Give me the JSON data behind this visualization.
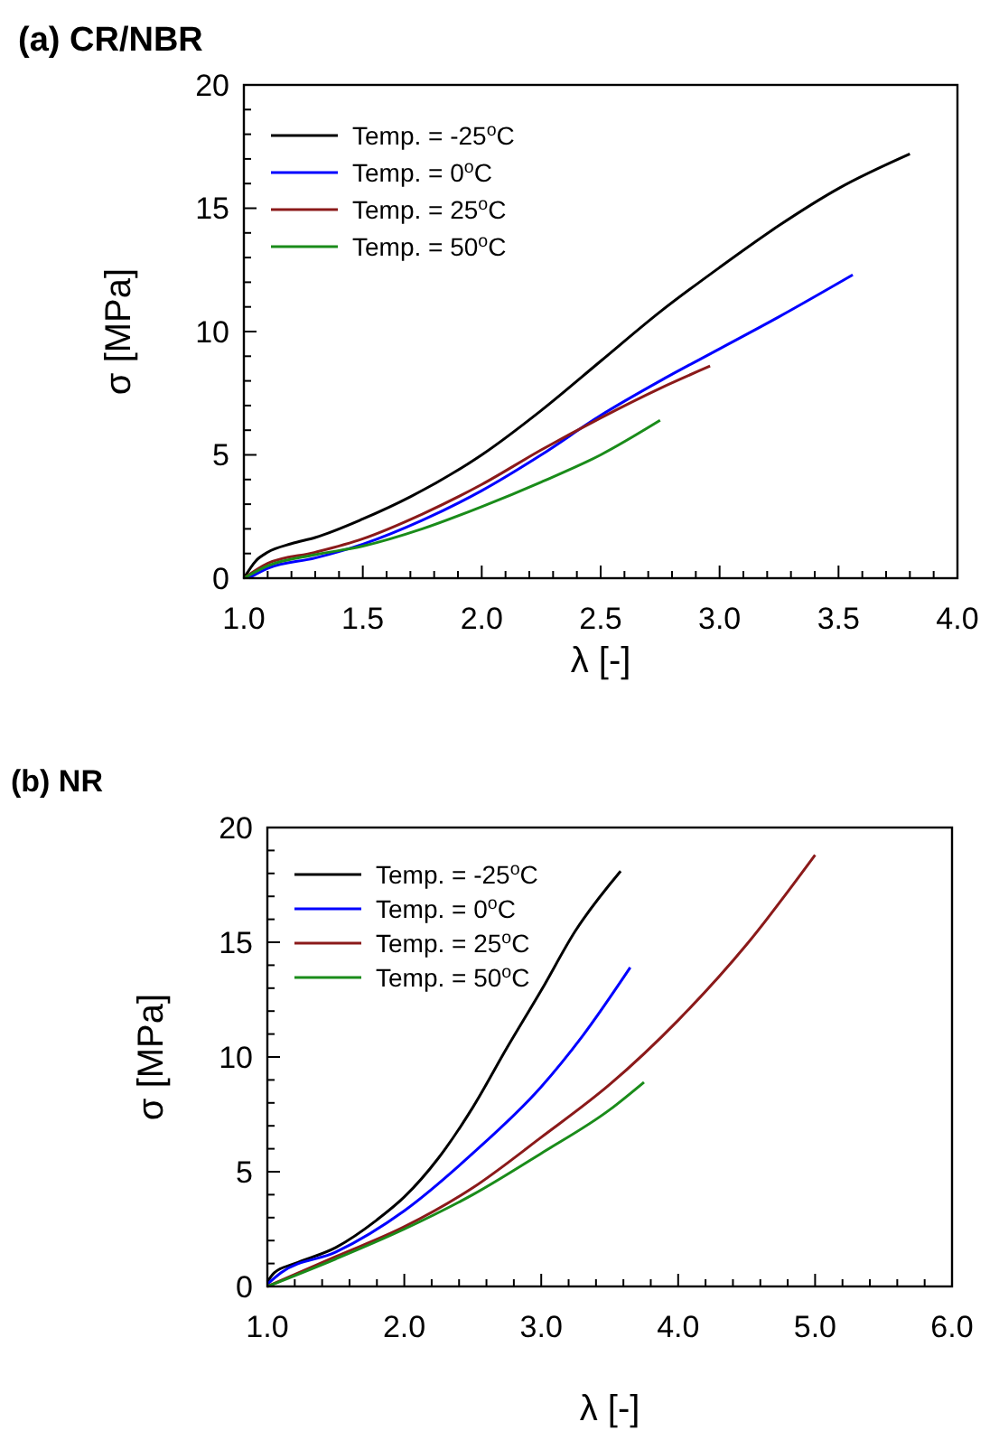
{
  "chart_data": [
    {
      "type": "line",
      "title": "(a) CR/NBR",
      "xlabel": "λ [-]",
      "ylabel": "σ [MPa]",
      "legend": "top left",
      "line_style": "solid",
      "marker": "none",
      "grid": false,
      "xlim": [
        1,
        4
      ],
      "ylim": [
        0,
        20
      ],
      "xticks": [
        {
          "value": 1,
          "label": "1.0"
        },
        {
          "value": 1.1,
          "label": null
        },
        {
          "value": 1.2,
          "label": null
        },
        {
          "value": 1.3,
          "label": null
        },
        {
          "value": 1.4,
          "label": null
        },
        {
          "value": 1.5,
          "label": "1.5"
        },
        {
          "value": 1.6,
          "label": null
        },
        {
          "value": 1.7,
          "label": null
        },
        {
          "value": 1.8,
          "label": null
        },
        {
          "value": 1.9,
          "label": null
        },
        {
          "value": 2,
          "label": "2.0"
        },
        {
          "value": 2.1,
          "label": null
        },
        {
          "value": 2.2,
          "label": null
        },
        {
          "value": 2.3,
          "label": null
        },
        {
          "value": 2.4,
          "label": null
        },
        {
          "value": 2.5,
          "label": "2.5"
        },
        {
          "value": 2.6,
          "label": null
        },
        {
          "value": 2.7,
          "label": null
        },
        {
          "value": 2.8,
          "label": null
        },
        {
          "value": 2.9,
          "label": null
        },
        {
          "value": 3,
          "label": "3.0"
        },
        {
          "value": 3.1,
          "label": null
        },
        {
          "value": 3.2,
          "label": null
        },
        {
          "value": 3.3,
          "label": null
        },
        {
          "value": 3.4,
          "label": null
        },
        {
          "value": 3.5,
          "label": "3.5"
        },
        {
          "value": 3.6,
          "label": null
        },
        {
          "value": 3.7,
          "label": null
        },
        {
          "value": 3.8,
          "label": null
        },
        {
          "value": 3.9,
          "label": null
        },
        {
          "value": 4,
          "label": "4.0"
        }
      ],
      "yticks": [
        0,
        {
          "value": 1,
          "label": null
        },
        {
          "value": 2,
          "label": null
        },
        {
          "value": 3,
          "label": null
        },
        {
          "value": 4,
          "label": null
        },
        5,
        {
          "value": 6,
          "label": null
        },
        {
          "value": 7,
          "label": null
        },
        {
          "value": 8,
          "label": null
        },
        {
          "value": 9,
          "label": null
        },
        10,
        {
          "value": 11,
          "label": null
        },
        {
          "value": 12,
          "label": null
        },
        {
          "value": 13,
          "label": null
        },
        {
          "value": 14,
          "label": null
        },
        15,
        {
          "value": 16,
          "label": null
        },
        {
          "value": 17,
          "label": null
        },
        {
          "value": 18,
          "label": null
        },
        {
          "value": 19,
          "label": null
        },
        20
      ],
      "series": [
        {
          "name": "Temp. = -25$^{o}$C",
          "color": "#000000",
          "x": [
            1,
            1.05,
            1.1,
            1.2,
            1.3,
            1.5,
            1.7,
            2,
            2.25,
            2.5,
            2.75,
            3,
            3.25,
            3.5,
            3.8
          ],
          "values": [
            0,
            0.7,
            1.05,
            1.4,
            1.65,
            2.4,
            3.3,
            5,
            6.8,
            8.8,
            10.8,
            12.6,
            14.3,
            15.8,
            17.2
          ]
        },
        {
          "name": "Temp. = 0$^{o}$C",
          "color": "#0000ff",
          "x": [
            1.02,
            1.1,
            1.3,
            1.5,
            1.75,
            2,
            2.25,
            2.5,
            2.75,
            3,
            3.25,
            3.56
          ],
          "values": [
            0,
            0.4,
            0.82,
            1.38,
            2.35,
            3.55,
            5,
            6.6,
            8,
            9.3,
            10.6,
            12.3
          ]
        },
        {
          "name": "Temp. = 25$^{o}$C",
          "color": "#8b1a1a",
          "x": [
            1,
            1.1,
            1.3,
            1.5,
            1.75,
            2,
            2.25,
            2.5,
            2.75,
            2.96
          ],
          "values": [
            0,
            0.6,
            1.05,
            1.6,
            2.6,
            3.8,
            5.2,
            6.5,
            7.7,
            8.6
          ]
        },
        {
          "name": "Temp. = 50$^{o}$C",
          "color": "#1a8c1a",
          "x": [
            1,
            1.1,
            1.3,
            1.5,
            1.75,
            2,
            2.25,
            2.5,
            2.75
          ],
          "values": [
            0,
            0.5,
            0.95,
            1.3,
            2,
            2.9,
            3.9,
            5,
            6.4
          ]
        }
      ]
    },
    {
      "type": "line",
      "title": "(b) NR",
      "xlabel": "λ [-]",
      "ylabel": "σ [MPa]",
      "legend": "top left",
      "line_style": "solid",
      "marker": "none",
      "grid": false,
      "xlim": [
        1,
        6
      ],
      "ylim": [
        0,
        20
      ],
      "xticks": [
        {
          "value": 1,
          "label": "1.0"
        },
        {
          "value": 1.2,
          "label": null
        },
        {
          "value": 1.4,
          "label": null
        },
        {
          "value": 1.6,
          "label": null
        },
        {
          "value": 1.8,
          "label": null
        },
        {
          "value": 2,
          "label": "2.0"
        },
        {
          "value": 2.2,
          "label": null
        },
        {
          "value": 2.4,
          "label": null
        },
        {
          "value": 2.6,
          "label": null
        },
        {
          "value": 2.8,
          "label": null
        },
        {
          "value": 3,
          "label": "3.0"
        },
        {
          "value": 3.2,
          "label": null
        },
        {
          "value": 3.4,
          "label": null
        },
        {
          "value": 3.6,
          "label": null
        },
        {
          "value": 3.8,
          "label": null
        },
        {
          "value": 4,
          "label": "4.0"
        },
        {
          "value": 4.2,
          "label": null
        },
        {
          "value": 4.4,
          "label": null
        },
        {
          "value": 4.6,
          "label": null
        },
        {
          "value": 4.8,
          "label": null
        },
        {
          "value": 5,
          "label": "5.0"
        },
        {
          "value": 5.2,
          "label": null
        },
        {
          "value": 5.4,
          "label": null
        },
        {
          "value": 5.6,
          "label": null
        },
        {
          "value": 5.8,
          "label": null
        },
        {
          "value": 6,
          "label": "6.0"
        }
      ],
      "yticks": [
        0,
        {
          "value": 1,
          "label": null
        },
        {
          "value": 2,
          "label": null
        },
        {
          "value": 3,
          "label": null
        },
        {
          "value": 4,
          "label": null
        },
        5,
        {
          "value": 6,
          "label": null
        },
        {
          "value": 7,
          "label": null
        },
        {
          "value": 8,
          "label": null
        },
        {
          "value": 9,
          "label": null
        },
        10,
        {
          "value": 11,
          "label": null
        },
        {
          "value": 12,
          "label": null
        },
        {
          "value": 13,
          "label": null
        },
        {
          "value": 14,
          "label": null
        },
        15,
        {
          "value": 16,
          "label": null
        },
        {
          "value": 17,
          "label": null
        },
        {
          "value": 18,
          "label": null
        },
        {
          "value": 19,
          "label": null
        },
        20
      ],
      "series": [
        {
          "name": "Temp. = -25$^{o}$C",
          "color": "#000000",
          "x": [
            1,
            1.05,
            1.2,
            1.5,
            1.8,
            2,
            2.25,
            2.5,
            2.75,
            3,
            3.25,
            3.58
          ],
          "values": [
            0.2,
            0.6,
            1,
            1.7,
            2.9,
            3.9,
            5.6,
            7.8,
            10.4,
            12.9,
            15.5,
            18.1
          ]
        },
        {
          "name": "Temp. = 0$^{o}$C",
          "color": "#0000ff",
          "x": [
            1,
            1.1,
            1.5,
            2,
            2.5,
            3,
            3.3,
            3.65
          ],
          "values": [
            0.1,
            0.6,
            1.5,
            3.3,
            5.8,
            8.7,
            10.9,
            13.9
          ]
        },
        {
          "name": "Temp. = 25$^{o}$C",
          "color": "#8b1a1a",
          "x": [
            1,
            1.5,
            2,
            2.5,
            3,
            3.5,
            4,
            4.5,
            5
          ],
          "values": [
            0,
            1.3,
            2.6,
            4.3,
            6.5,
            8.8,
            11.6,
            14.9,
            18.8
          ]
        },
        {
          "name": "Temp. = 50$^{o}$C",
          "color": "#1a8c1a",
          "x": [
            1,
            1.5,
            2,
            2.5,
            3,
            3.5,
            3.75
          ],
          "values": [
            0,
            1.2,
            2.5,
            4,
            5.8,
            7.7,
            8.9
          ]
        }
      ]
    }
  ]
}
